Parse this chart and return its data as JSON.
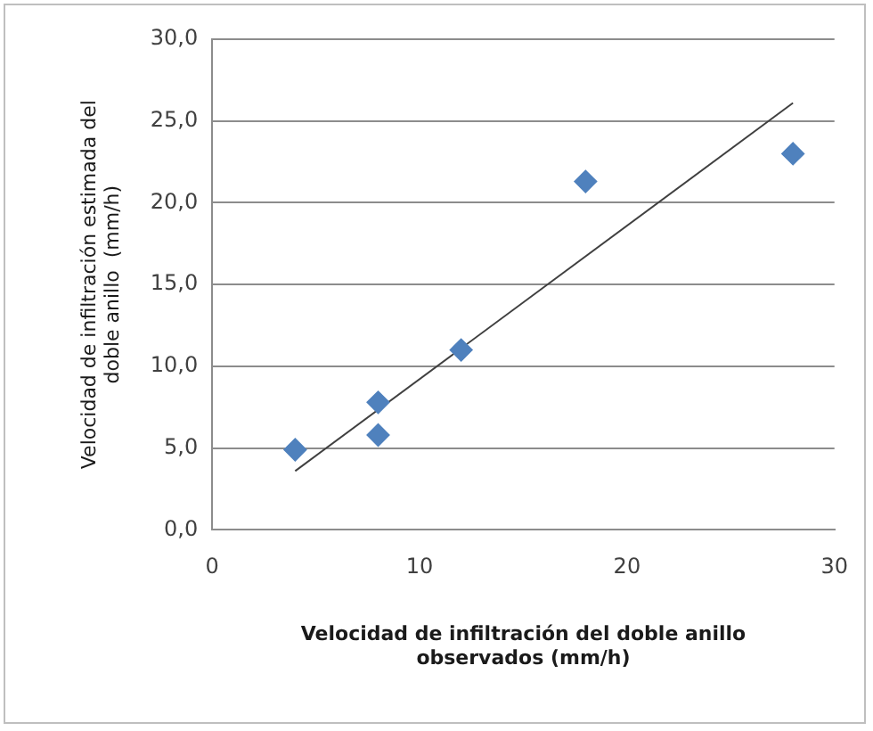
{
  "chart_data": {
    "type": "scatter",
    "xlabel": "Velocidad de infiltración del doble anillo\nobservados (mm/h)",
    "ylabel": "Velocidad de infiltración estimada del\ndoble anillo  (mm/h)",
    "xlim": [
      0,
      30
    ],
    "xticks": [
      0,
      10,
      20,
      30
    ],
    "ylim": [
      0,
      30
    ],
    "yticks": [
      {
        "value": 0,
        "label": "0,0"
      },
      {
        "value": 5,
        "label": "5,0"
      },
      {
        "value": 10,
        "label": "10,0"
      },
      {
        "value": 15,
        "label": "15,0"
      },
      {
        "value": 20,
        "label": "20,0"
      },
      {
        "value": 25,
        "label": "25,0"
      },
      {
        "value": 30,
        "label": "30,0"
      }
    ],
    "grid": "y",
    "marker": "diamond",
    "series": [
      {
        "color": "#4f81bd",
        "x": [
          4,
          8,
          8,
          12,
          18,
          28
        ],
        "values": [
          4.9,
          7.8,
          5.8,
          11.0,
          21.3,
          23.0
        ]
      },
      {
        "type": "line",
        "color": "#404040",
        "x": [
          4,
          28
        ],
        "values": [
          3.6,
          26.1
        ],
        "marker": "none",
        "line_style": "solid"
      }
    ]
  }
}
